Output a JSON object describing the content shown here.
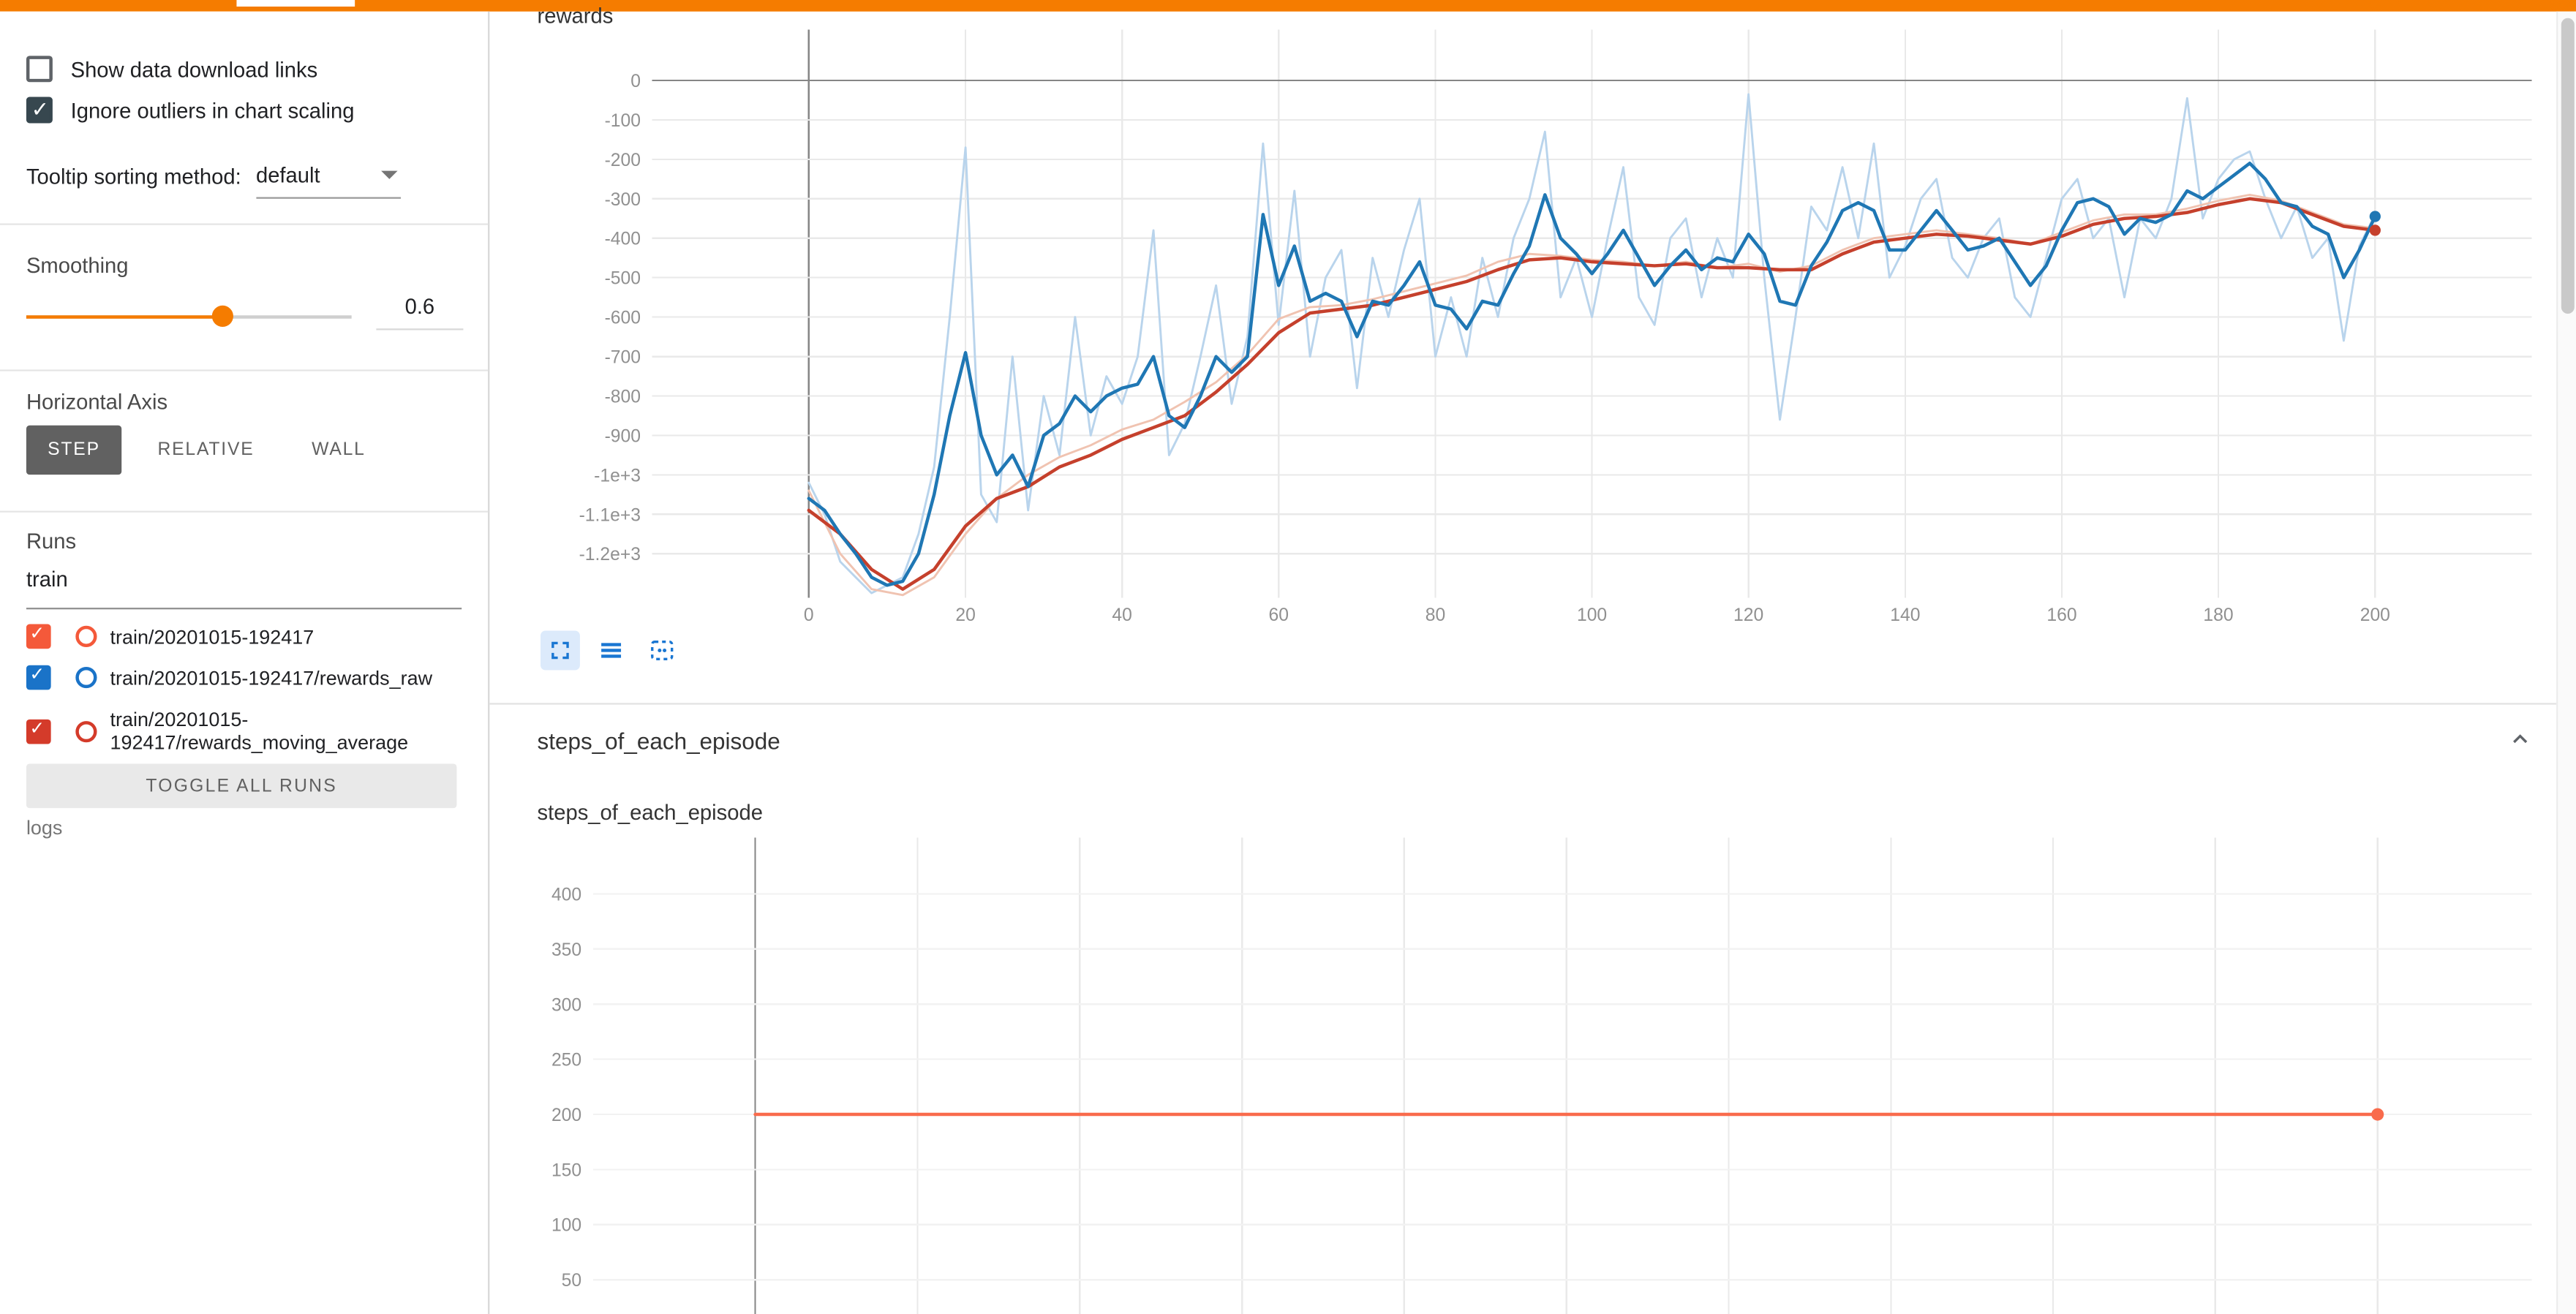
{
  "colors": {
    "topbar": "#f57c00",
    "accent": "#f57c00",
    "checkbox_checked": "#37474f",
    "toolbar_icon": "#1976d2"
  },
  "sidebar": {
    "checkboxes": [
      {
        "label": "Show data download links",
        "checked": false
      },
      {
        "label": "Ignore outliers in chart scaling",
        "checked": true
      }
    ],
    "tooltip_sort": {
      "label": "Tooltip sorting method:",
      "value": "default"
    },
    "smoothing": {
      "label": "Smoothing",
      "value": "0.6"
    },
    "horizontal_axis": {
      "label": "Horizontal Axis",
      "options": [
        "STEP",
        "RELATIVE",
        "WALL"
      ],
      "selected": "STEP"
    },
    "runs": {
      "label": "Runs",
      "filter_value": "train",
      "items": [
        {
          "label": "train/20201015-192417",
          "color": "#f4593a",
          "checked": true
        },
        {
          "label": "train/20201015-192417/rewards_raw",
          "color": "#1a73c8",
          "checked": true
        },
        {
          "label": "train/20201015-192417/rewards_moving_average",
          "color": "#d43b2a",
          "checked": true
        }
      ],
      "toggle_all_label": "TOGGLE ALL RUNS"
    },
    "footer": "logs"
  },
  "main": {
    "rewards_card_title": "rewards",
    "steps_section_title": "steps_of_each_episode",
    "steps_card_title": "steps_of_each_episode"
  },
  "chart_data": [
    {
      "id": "rewards",
      "type": "line",
      "title": "rewards",
      "x_range": [
        -20,
        220
      ],
      "y_range": [
        -1312,
        129
      ],
      "x_ticks": [
        {
          "v": 0,
          "label": "0",
          "axis": true
        },
        {
          "v": 20,
          "label": "20"
        },
        {
          "v": 40,
          "label": "40"
        },
        {
          "v": 60,
          "label": "60"
        },
        {
          "v": 80,
          "label": "80"
        },
        {
          "v": 100,
          "label": "100"
        },
        {
          "v": 120,
          "label": "120"
        },
        {
          "v": 140,
          "label": "140"
        },
        {
          "v": 160,
          "label": "160"
        },
        {
          "v": 180,
          "label": "180"
        },
        {
          "v": 200,
          "label": "200"
        }
      ],
      "y_ticks": [
        {
          "v": 0,
          "label": "0",
          "axis": true
        },
        {
          "v": -100,
          "label": "-100"
        },
        {
          "v": -200,
          "label": "-200"
        },
        {
          "v": -300,
          "label": "-300"
        },
        {
          "v": -400,
          "label": "-400"
        },
        {
          "v": -500,
          "label": "-500"
        },
        {
          "v": -600,
          "label": "-600"
        },
        {
          "v": -700,
          "label": "-700"
        },
        {
          "v": -800,
          "label": "-800"
        },
        {
          "v": -900,
          "label": "-900"
        },
        {
          "v": -1000,
          "label": "-1e+3"
        },
        {
          "v": -1100,
          "label": "-1.1e+3"
        },
        {
          "v": -1200,
          "label": "-1.2e+3"
        }
      ],
      "series": [
        {
          "name": "train/20201015-192417/rewards_raw (unsmoothed)",
          "color": "#b9d4ec",
          "width": 1.3,
          "x0": 0,
          "x_step": 2,
          "values": [
            -1020,
            -1100,
            -1220,
            -1260,
            -1300,
            -1280,
            -1260,
            -1150,
            -980,
            -600,
            -170,
            -1050,
            -1120,
            -700,
            -1090,
            -800,
            -950,
            -600,
            -900,
            -750,
            -820,
            -700,
            -380,
            -950,
            -870,
            -700,
            -520,
            -820,
            -650,
            -160,
            -620,
            -280,
            -700,
            -500,
            -430,
            -780,
            -450,
            -600,
            -430,
            -300,
            -700,
            -550,
            -700,
            -450,
            -600,
            -400,
            -300,
            -130,
            -550,
            -450,
            -600,
            -400,
            -220,
            -550,
            -620,
            -400,
            -350,
            -550,
            -400,
            -500,
            -35,
            -500,
            -860,
            -600,
            -320,
            -380,
            -220,
            -400,
            -160,
            -500,
            -420,
            -300,
            -250,
            -450,
            -500,
            -400,
            -350,
            -550,
            -600,
            -450,
            -300,
            -250,
            -400,
            -350,
            -550,
            -350,
            -400,
            -300,
            -45,
            -350,
            -250,
            -200,
            -180,
            -300,
            -400,
            -320,
            -450,
            -400,
            -660,
            -420,
            -340
          ]
        },
        {
          "name": "train/20201015-192417/rewards_moving_average (unsmoothed)",
          "color": "#f0c3b1",
          "width": 1.3,
          "x0": 0,
          "x_step": 4,
          "values": [
            -1040,
            -1200,
            -1290,
            -1305,
            -1260,
            -1150,
            -1060,
            -1000,
            -955,
            -925,
            -885,
            -860,
            -815,
            -765,
            -695,
            -605,
            -575,
            -570,
            -555,
            -535,
            -515,
            -495,
            -460,
            -440,
            -445,
            -455,
            -460,
            -470,
            -460,
            -475,
            -465,
            -485,
            -470,
            -430,
            -400,
            -390,
            -380,
            -390,
            -400,
            -415,
            -385,
            -355,
            -340,
            -340,
            -325,
            -305,
            -290,
            -305,
            -335,
            -365,
            -375
          ]
        },
        {
          "name": "train/20201015-192417/rewards_moving_average (smoothed 0.6)",
          "color": "#c5402c",
          "width": 2,
          "x0": 0,
          "x_step": 4,
          "values": [
            -1090,
            -1150,
            -1240,
            -1290,
            -1240,
            -1130,
            -1060,
            -1030,
            -980,
            -950,
            -910,
            -880,
            -850,
            -790,
            -720,
            -640,
            -590,
            -580,
            -570,
            -550,
            -530,
            -510,
            -480,
            -455,
            -450,
            -460,
            -465,
            -470,
            -465,
            -475,
            -475,
            -480,
            -480,
            -440,
            -410,
            -400,
            -390,
            -395,
            -405,
            -415,
            -395,
            -365,
            -350,
            -345,
            -335,
            -315,
            -300,
            -310,
            -340,
            -370,
            -380
          ]
        },
        {
          "name": "train/20201015-192417/rewards_raw (smoothed 0.6)",
          "color": "#1f77b4",
          "width": 2,
          "x0": 0,
          "x_step": 2,
          "values": [
            -1060,
            -1090,
            -1150,
            -1200,
            -1260,
            -1280,
            -1270,
            -1200,
            -1050,
            -850,
            -690,
            -900,
            -1000,
            -950,
            -1030,
            -900,
            -870,
            -800,
            -840,
            -800,
            -780,
            -770,
            -700,
            -850,
            -880,
            -800,
            -700,
            -740,
            -700,
            -340,
            -520,
            -420,
            -560,
            -540,
            -560,
            -650,
            -560,
            -570,
            -520,
            -460,
            -570,
            -580,
            -630,
            -560,
            -570,
            -490,
            -420,
            -290,
            -400,
            -440,
            -490,
            -440,
            -380,
            -450,
            -520,
            -470,
            -430,
            -480,
            -450,
            -460,
            -390,
            -440,
            -560,
            -570,
            -470,
            -410,
            -330,
            -310,
            -330,
            -430,
            -430,
            -380,
            -330,
            -380,
            -430,
            -420,
            -400,
            -460,
            -520,
            -470,
            -380,
            -310,
            -300,
            -320,
            -390,
            -350,
            -360,
            -340,
            -280,
            -300,
            -270,
            -240,
            -210,
            -250,
            -310,
            -320,
            -370,
            -390,
            -500,
            -430,
            -345
          ]
        }
      ],
      "end_markers": [
        {
          "x": 200,
          "y": -345,
          "color": "#1f77b4",
          "r": 3.4
        },
        {
          "x": 200,
          "y": -380,
          "color": "#c5402c",
          "r": 3.4
        }
      ]
    },
    {
      "id": "steps",
      "type": "line",
      "title": "steps_of_each_episode",
      "x_range": [
        -20,
        219
      ],
      "y_range": [
        19,
        451
      ],
      "x_ticks": [
        {
          "v": 0,
          "label": "",
          "axis": true
        },
        {
          "v": 20,
          "label": ""
        },
        {
          "v": 40,
          "label": ""
        },
        {
          "v": 60,
          "label": ""
        },
        {
          "v": 80,
          "label": ""
        },
        {
          "v": 100,
          "label": ""
        },
        {
          "v": 120,
          "label": ""
        },
        {
          "v": 140,
          "label": ""
        },
        {
          "v": 160,
          "label": ""
        },
        {
          "v": 180,
          "label": ""
        },
        {
          "v": 200,
          "label": ""
        }
      ],
      "y_ticks": [
        {
          "v": 400,
          "label": "400"
        },
        {
          "v": 350,
          "label": "350"
        },
        {
          "v": 300,
          "label": "300"
        },
        {
          "v": 250,
          "label": "250"
        },
        {
          "v": 200,
          "label": "200"
        },
        {
          "v": 150,
          "label": "150"
        },
        {
          "v": 100,
          "label": "100"
        },
        {
          "v": 50,
          "label": "50"
        }
      ],
      "series": [
        {
          "name": "train/20201015-192417 steps_of_each_episode",
          "color": "#f96b4c",
          "width": 2,
          "x0": 0,
          "x_step": 200,
          "values": [
            200,
            200
          ]
        }
      ],
      "end_markers": [
        {
          "x": 200,
          "y": 200,
          "color": "#f96b4c",
          "r": 3.8
        }
      ]
    }
  ]
}
